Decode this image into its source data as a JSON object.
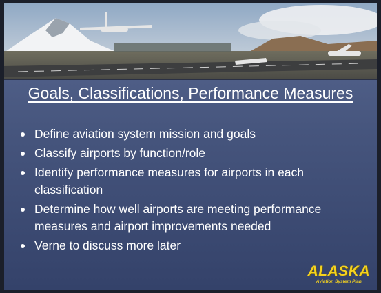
{
  "slide": {
    "title": "Goals, Classifications, Performance Measures",
    "bullets": [
      "Define aviation system mission and goals",
      "Classify airports by function/role",
      "Identify performance measures for airports in each classification",
      "Determine how well airports are meeting performance measures and airport improvements needed",
      "Verne to discuss more later"
    ],
    "logo": {
      "name": "ALASKA",
      "tagline": "Aviation System Plan"
    }
  }
}
